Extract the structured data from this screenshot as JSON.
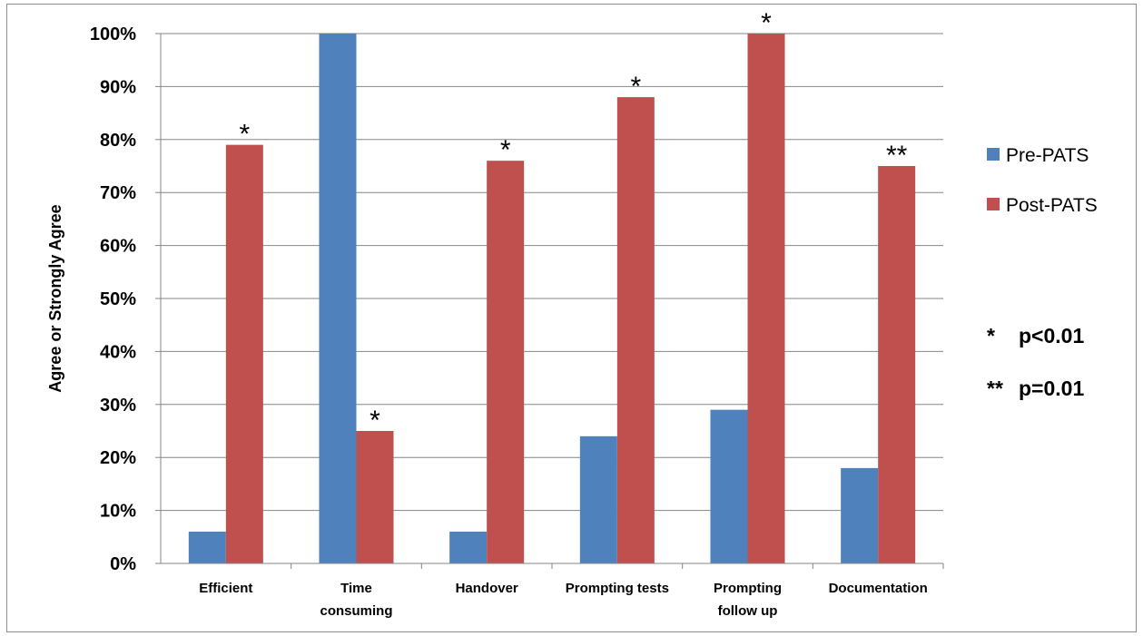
{
  "chart_data": {
    "type": "bar",
    "ylabel": "Agree or Strongly Agree",
    "categories": [
      [
        "Efficient"
      ],
      [
        "Time",
        "consuming"
      ],
      [
        "Handover"
      ],
      [
        "Prompting tests"
      ],
      [
        "Prompting",
        "follow up"
      ],
      [
        "Documentation"
      ]
    ],
    "series": [
      {
        "name": "Pre-PATS",
        "color": "#4f81bd",
        "values": [
          6,
          100,
          6,
          24,
          29,
          18
        ]
      },
      {
        "name": "Post-PATS",
        "color": "#c0504d",
        "values": [
          79,
          25,
          76,
          88,
          100,
          75
        ]
      }
    ],
    "significance": [
      "*",
      "*",
      "*",
      "*",
      "*",
      "**"
    ],
    "ylim": [
      0,
      100
    ],
    "yticks": [
      "0%",
      "10%",
      "20%",
      "30%",
      "40%",
      "50%",
      "60%",
      "70%",
      "80%",
      "90%",
      "100%"
    ],
    "grid": true,
    "legend_position": "right",
    "annotations": [
      {
        "marker": "*",
        "text": "p<0.01"
      },
      {
        "marker": "**",
        "text": "p=0.01"
      }
    ]
  }
}
